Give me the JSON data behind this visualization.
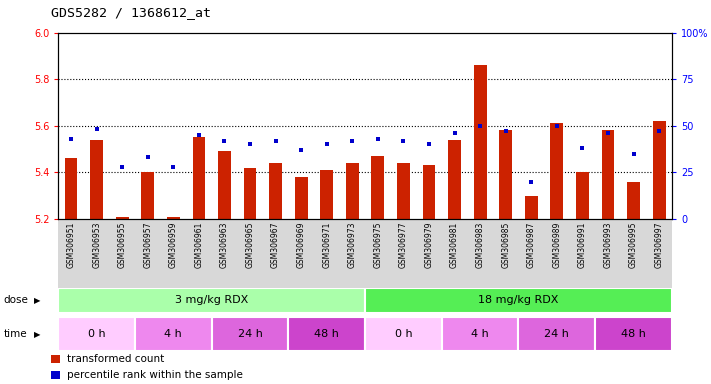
{
  "title": "GDS5282 / 1368612_at",
  "samples": [
    "GSM306951",
    "GSM306953",
    "GSM306955",
    "GSM306957",
    "GSM306959",
    "GSM306961",
    "GSM306963",
    "GSM306965",
    "GSM306967",
    "GSM306969",
    "GSM306971",
    "GSM306973",
    "GSM306975",
    "GSM306977",
    "GSM306979",
    "GSM306981",
    "GSM306983",
    "GSM306985",
    "GSM306987",
    "GSM306989",
    "GSM306991",
    "GSM306993",
    "GSM306995",
    "GSM306997"
  ],
  "bar_values": [
    5.46,
    5.54,
    5.21,
    5.4,
    5.21,
    5.55,
    5.49,
    5.42,
    5.44,
    5.38,
    5.41,
    5.44,
    5.47,
    5.44,
    5.43,
    5.54,
    5.86,
    5.58,
    5.3,
    5.61,
    5.4,
    5.58,
    5.36,
    5.62
  ],
  "percentile_values": [
    43,
    48,
    28,
    33,
    28,
    45,
    42,
    40,
    42,
    37,
    40,
    42,
    43,
    42,
    40,
    46,
    50,
    47,
    20,
    50,
    38,
    46,
    35,
    47
  ],
  "ymin": 5.2,
  "ymax": 6.0,
  "yticks": [
    5.2,
    5.4,
    5.6,
    5.8,
    6.0
  ],
  "right_yticks": [
    0,
    25,
    50,
    75,
    100
  ],
  "right_ytick_labels": [
    "0",
    "25",
    "50",
    "75",
    "100%"
  ],
  "bar_color": "#cc2200",
  "percentile_color": "#0000cc",
  "dose_groups": [
    {
      "label": "3 mg/kg RDX",
      "start": 0,
      "end": 12,
      "color": "#aaffaa"
    },
    {
      "label": "18 mg/kg RDX",
      "start": 12,
      "end": 24,
      "color": "#55ee55"
    }
  ],
  "time_groups": [
    {
      "label": "0 h",
      "start": 0,
      "end": 3,
      "color": "#ffccff"
    },
    {
      "label": "4 h",
      "start": 3,
      "end": 6,
      "color": "#ee88ee"
    },
    {
      "label": "24 h",
      "start": 6,
      "end": 9,
      "color": "#dd66dd"
    },
    {
      "label": "48 h",
      "start": 9,
      "end": 12,
      "color": "#cc44cc"
    },
    {
      "label": "0 h",
      "start": 12,
      "end": 15,
      "color": "#ffccff"
    },
    {
      "label": "4 h",
      "start": 15,
      "end": 18,
      "color": "#ee88ee"
    },
    {
      "label": "24 h",
      "start": 18,
      "end": 21,
      "color": "#dd66dd"
    },
    {
      "label": "48 h",
      "start": 21,
      "end": 24,
      "color": "#cc44cc"
    }
  ],
  "legend_items": [
    {
      "label": "transformed count",
      "color": "#cc2200"
    },
    {
      "label": "percentile rank within the sample",
      "color": "#0000cc"
    }
  ]
}
